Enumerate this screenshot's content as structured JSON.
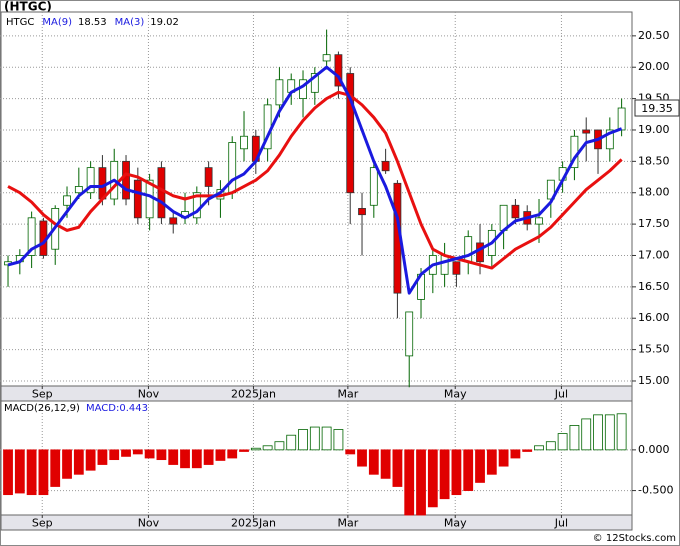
{
  "chart_data": [
    {
      "type": "candlestick",
      "title": "(HTGC)",
      "symbol": "HTGC",
      "categories": [
        null,
        null,
        null,
        null,
        null,
        null,
        null,
        null,
        null,
        null,
        null,
        null,
        null,
        null,
        null,
        null,
        null,
        null,
        null,
        null,
        null,
        null,
        null,
        null,
        null,
        null,
        null,
        null,
        null,
        null,
        null,
        null,
        null,
        null,
        null,
        null,
        null,
        null,
        null,
        null,
        null,
        null,
        null,
        null,
        null,
        null,
        null,
        null,
        null,
        null,
        null,
        null,
        null
      ],
      "open": [
        16.85,
        16.9,
        17.0,
        17.55,
        17.1,
        17.8,
        18.0,
        18.0,
        18.4,
        17.9,
        18.5,
        18.2,
        17.6,
        18.4,
        17.6,
        17.6,
        17.6,
        18.4,
        17.9,
        18.0,
        18.7,
        18.9,
        18.7,
        19.4,
        19.6,
        19.5,
        19.6,
        20.1,
        20.2,
        19.9,
        17.75,
        17.8,
        18.5,
        18.15,
        15.4,
        16.3,
        16.7,
        16.7,
        16.9,
        16.9,
        17.2,
        17.0,
        17.4,
        17.8,
        17.7,
        17.5,
        17.9,
        18.2,
        18.4,
        19.0,
        19.0,
        18.7,
        19.0
      ],
      "high": [
        17.0,
        17.1,
        17.7,
        17.6,
        17.8,
        18.1,
        18.4,
        18.5,
        18.6,
        18.7,
        18.6,
        18.4,
        18.3,
        18.5,
        17.7,
        18.0,
        18.1,
        18.5,
        18.2,
        18.9,
        19.3,
        19.0,
        19.5,
        20.0,
        19.9,
        19.95,
        20.0,
        20.6,
        20.25,
        20.0,
        18.0,
        18.5,
        18.7,
        18.2,
        16.1,
        16.8,
        17.1,
        17.2,
        16.9,
        17.4,
        17.5,
        17.5,
        17.8,
        17.9,
        17.8,
        17.9,
        18.2,
        18.5,
        19.0,
        19.2,
        19.0,
        19.2,
        19.5
      ],
      "low": [
        16.5,
        16.7,
        16.8,
        16.95,
        16.85,
        17.6,
        17.9,
        17.9,
        17.8,
        17.8,
        17.8,
        17.5,
        17.4,
        17.5,
        17.35,
        17.5,
        17.5,
        17.8,
        17.6,
        17.9,
        18.5,
        18.3,
        18.5,
        19.2,
        19.4,
        19.2,
        19.4,
        20.0,
        19.5,
        17.5,
        17.0,
        17.6,
        18.3,
        16.0,
        14.9,
        16.0,
        16.4,
        16.5,
        16.5,
        16.7,
        16.7,
        16.8,
        17.1,
        17.5,
        17.4,
        17.2,
        17.6,
        18.0,
        18.2,
        18.5,
        18.3,
        18.5,
        18.9
      ],
      "close": [
        16.9,
        17.0,
        17.6,
        17.0,
        17.75,
        17.95,
        18.1,
        18.4,
        17.9,
        18.5,
        17.9,
        17.6,
        18.2,
        17.6,
        17.5,
        17.7,
        18.0,
        18.1,
        18.05,
        18.8,
        18.9,
        18.5,
        19.4,
        19.8,
        19.8,
        19.8,
        19.9,
        20.2,
        19.7,
        18.0,
        17.65,
        18.4,
        18.35,
        16.4,
        16.1,
        16.7,
        17.0,
        17.0,
        16.7,
        17.3,
        16.9,
        17.4,
        17.8,
        17.6,
        17.5,
        17.6,
        18.2,
        18.4,
        18.9,
        18.95,
        18.7,
        19.0,
        19.35
      ],
      "up_color": "#006400",
      "down_color": "#e00000",
      "series": [
        {
          "name": "MA(9)",
          "color": "#e81010",
          "values": [
            18.1,
            18.0,
            17.85,
            17.65,
            17.5,
            17.4,
            17.45,
            17.7,
            17.9,
            18.1,
            18.3,
            18.25,
            18.15,
            18.05,
            17.95,
            17.9,
            17.95,
            17.95,
            17.95,
            18.0,
            18.1,
            18.2,
            18.35,
            18.6,
            18.9,
            19.15,
            19.35,
            19.5,
            19.6,
            19.55,
            19.4,
            19.2,
            18.95,
            18.5,
            18.0,
            17.5,
            17.1,
            17.0,
            16.95,
            16.9,
            16.85,
            16.8,
            16.95,
            17.1,
            17.2,
            17.3,
            17.45,
            17.65,
            17.85,
            18.05,
            18.2,
            18.35,
            18.53
          ]
        },
        {
          "name": "MA(3)",
          "color": "#1a1adf",
          "values": [
            16.85,
            16.9,
            17.1,
            17.2,
            17.45,
            17.7,
            17.95,
            18.1,
            18.1,
            18.2,
            18.05,
            18.0,
            17.95,
            17.85,
            17.7,
            17.6,
            17.7,
            17.9,
            18.0,
            18.2,
            18.3,
            18.5,
            18.9,
            19.3,
            19.6,
            19.7,
            19.85,
            20.0,
            19.85,
            19.5,
            19.0,
            18.5,
            18.1,
            17.6,
            16.4,
            16.7,
            16.85,
            16.9,
            16.95,
            17.0,
            17.1,
            17.2,
            17.4,
            17.55,
            17.6,
            17.65,
            17.85,
            18.2,
            18.55,
            18.8,
            18.85,
            18.95,
            19.02
          ]
        }
      ],
      "xlim": [
        -0.68,
        52.88
      ],
      "xticks": [
        {
          "value": 2.9,
          "label": "Sep"
        },
        {
          "value": 11.9,
          "label": "Nov"
        },
        {
          "value": 20.8,
          "label": "2025Jan"
        },
        {
          "value": 28.8,
          "label": "Mar"
        },
        {
          "value": 37.9,
          "label": "May"
        },
        {
          "value": 46.9,
          "label": "Jul"
        }
      ],
      "ylim": [
        14.92,
        20.88
      ],
      "yticks": [
        {
          "value": 15,
          "label": "15.00"
        },
        {
          "value": 15.5,
          "label": "15.50"
        },
        {
          "value": 16,
          "label": "16.00"
        },
        {
          "value": 16.5,
          "label": "16.50"
        },
        {
          "value": 17,
          "label": "17.00"
        },
        {
          "value": 17.5,
          "label": "17.50"
        },
        {
          "value": 18,
          "label": "18.00"
        },
        {
          "value": 18.5,
          "label": "18.50"
        },
        {
          "value": 19,
          "label": "19.00"
        },
        {
          "value": 19.5,
          "label": "19.50"
        },
        {
          "value": 20,
          "label": "20.00"
        },
        {
          "value": 20.5,
          "label": "20.50"
        }
      ],
      "grid": true
    },
    {
      "type": "bar",
      "title": "MACD(26,12,9)",
      "readout": "MACD:0.443",
      "values": [
        -0.55,
        -0.53,
        -0.55,
        -0.55,
        -0.45,
        -0.35,
        -0.3,
        -0.25,
        -0.18,
        -0.12,
        -0.08,
        -0.05,
        -0.1,
        -0.12,
        -0.18,
        -0.22,
        -0.22,
        -0.18,
        -0.13,
        -0.1,
        -0.02,
        0.02,
        0.05,
        0.1,
        0.18,
        0.25,
        0.28,
        0.28,
        0.25,
        -0.05,
        -0.2,
        -0.3,
        -0.35,
        -0.45,
        -0.8,
        -0.8,
        -0.7,
        -0.6,
        -0.55,
        -0.5,
        -0.4,
        -0.3,
        -0.2,
        -0.1,
        -0.02,
        0.05,
        0.1,
        0.2,
        0.3,
        0.38,
        0.43,
        0.43,
        0.443
      ],
      "up_color": "#006400",
      "down_color": "#e00000",
      "ylim": [
        -0.8,
        0.6
      ],
      "yticks": [
        {
          "value": -0.5,
          "label": "-0.500"
        },
        {
          "value": 0,
          "label": "0.000"
        }
      ],
      "grid": true,
      "watermark": "© 12Stocks.com"
    }
  ]
}
